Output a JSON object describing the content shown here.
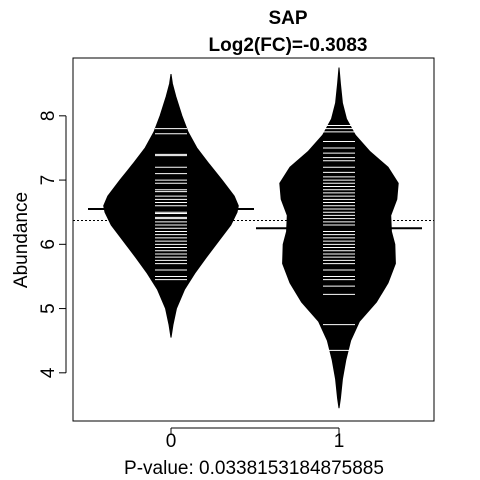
{
  "chart_data": {
    "type": "beanplot",
    "title": "SAP",
    "subtitle": "Log2(FC)=-0.3083",
    "xlabel": "P-value: 0.0338153184875885",
    "ylabel": "Abundance",
    "categories": [
      "0",
      "1"
    ],
    "yticks": [
      4,
      5,
      6,
      7,
      8
    ],
    "ylim": [
      3.25,
      8.9
    ],
    "overall_mean_line": 6.37,
    "colors": {
      "bean": "#000000",
      "lines": "#ffffff",
      "background": "#ffffff"
    },
    "groups": [
      {
        "category": "0",
        "mean": 6.55,
        "density": [
          [
            4.55,
            0.0
          ],
          [
            4.75,
            0.03
          ],
          [
            5.0,
            0.08
          ],
          [
            5.3,
            0.2
          ],
          [
            5.55,
            0.35
          ],
          [
            5.8,
            0.52
          ],
          [
            6.05,
            0.7
          ],
          [
            6.3,
            0.88
          ],
          [
            6.5,
            0.97
          ],
          [
            6.6,
            0.99
          ],
          [
            6.75,
            0.93
          ],
          [
            7.0,
            0.75
          ],
          [
            7.25,
            0.56
          ],
          [
            7.5,
            0.38
          ],
          [
            7.75,
            0.25
          ],
          [
            8.0,
            0.16
          ],
          [
            8.3,
            0.07
          ],
          [
            8.5,
            0.02
          ],
          [
            8.65,
            0.0
          ]
        ],
        "values": [
          7.8,
          7.72,
          7.4,
          7.38,
          7.2,
          7.1,
          7.0,
          6.95,
          6.85,
          6.82,
          6.75,
          6.7,
          6.65,
          6.6,
          6.55,
          6.5,
          6.48,
          6.42,
          6.4,
          6.35,
          6.3,
          6.25,
          6.2,
          6.15,
          6.1,
          6.05,
          6.0,
          5.95,
          5.9,
          5.85,
          5.8,
          5.75,
          5.7,
          5.6,
          5.5,
          5.45
        ]
      },
      {
        "category": "1",
        "mean": 6.25,
        "density": [
          [
            3.45,
            0.0
          ],
          [
            3.6,
            0.02
          ],
          [
            3.9,
            0.05
          ],
          [
            4.2,
            0.1
          ],
          [
            4.5,
            0.17
          ],
          [
            4.8,
            0.3
          ],
          [
            5.1,
            0.55
          ],
          [
            5.4,
            0.72
          ],
          [
            5.7,
            0.83
          ],
          [
            6.0,
            0.82
          ],
          [
            6.2,
            0.77
          ],
          [
            6.45,
            0.76
          ],
          [
            6.7,
            0.85
          ],
          [
            6.95,
            0.87
          ],
          [
            7.2,
            0.72
          ],
          [
            7.45,
            0.45
          ],
          [
            7.7,
            0.24
          ],
          [
            7.95,
            0.11
          ],
          [
            8.2,
            0.05
          ],
          [
            8.5,
            0.02
          ],
          [
            8.75,
            0.0
          ]
        ],
        "values": [
          7.85,
          7.8,
          7.75,
          7.6,
          7.5,
          7.42,
          7.35,
          7.3,
          7.2,
          7.12,
          7.05,
          7.0,
          6.95,
          6.9,
          6.85,
          6.8,
          6.75,
          6.7,
          6.65,
          6.6,
          6.55,
          6.5,
          6.45,
          6.4,
          6.35,
          6.3,
          6.25,
          6.2,
          6.15,
          6.1,
          6.05,
          6.0,
          5.95,
          5.9,
          5.85,
          5.8,
          5.75,
          5.7,
          5.6,
          5.5,
          5.45,
          5.35,
          5.22,
          4.75,
          4.35
        ]
      }
    ]
  }
}
